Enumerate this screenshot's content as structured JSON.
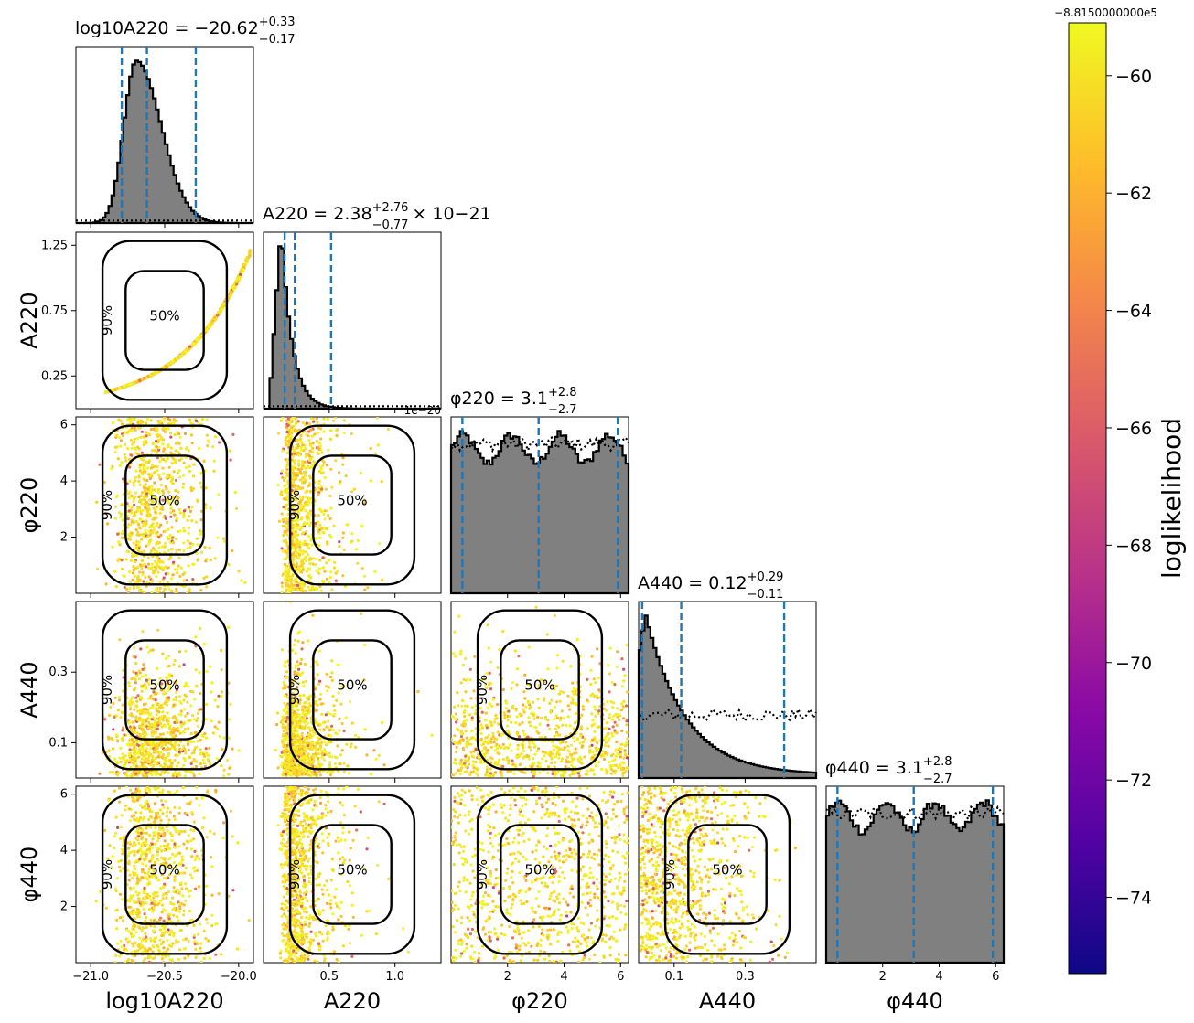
{
  "chart_data": {
    "type": "corner",
    "colormap": "plasma",
    "colorbar": {
      "label": "loglikelihood",
      "offset_text": "−8.8150000000e5",
      "ticks": [
        "−60",
        "−62",
        "−64",
        "−66",
        "−68",
        "−70",
        "−72",
        "−74"
      ],
      "tick_values": [
        -60,
        -62,
        -64,
        -66,
        -68,
        -70,
        -72,
        -74
      ],
      "range": [
        -75.3,
        -59.1
      ],
      "colors": {
        "low": "#0d0887",
        "mid": "#cc4778",
        "high": "#f0f921"
      }
    },
    "parameters": [
      {
        "key": "logA220",
        "xlabel": "log10A220",
        "title_main": "log10A220 = −20.62",
        "title_plus": "+0.33",
        "title_minus": "−0.17",
        "title_suffix": "",
        "range": [
          -21.1,
          -19.9
        ],
        "ticks": [
          -21.0,
          -20.5,
          -20.0
        ],
        "tick_labels": [
          "−21.0",
          "−20.5",
          "−20.0"
        ],
        "quantiles": [
          -20.79,
          -20.62,
          -20.29
        ],
        "offset_label": ""
      },
      {
        "key": "A220",
        "xlabel": "A220",
        "title_main": "A220 = 2.38",
        "title_plus": "+2.76",
        "title_minus": "−0.77",
        "title_suffix": "× 10−21",
        "range": [
          0.0,
          1.35
        ],
        "ticks": [
          0.5,
          1.0
        ],
        "tick_labels": [
          "0.5",
          "1.0"
        ],
        "y_tick_labels": [
          "0.25",
          "0.75",
          "1.25"
        ],
        "y_ticks": [
          0.25,
          0.75,
          1.25
        ],
        "quantiles": [
          0.161,
          0.238,
          0.514
        ],
        "offset_label": "1e−20"
      },
      {
        "key": "phi220",
        "xlabel": "φ220",
        "title_main": "φ220 = 3.1",
        "title_plus": "+2.8",
        "title_minus": "−2.7",
        "title_suffix": "",
        "range": [
          0.0,
          6.283
        ],
        "ticks": [
          2,
          4,
          6
        ],
        "tick_labels": [
          "2",
          "4",
          "6"
        ],
        "quantiles": [
          0.4,
          3.1,
          5.9
        ],
        "offset_label": ""
      },
      {
        "key": "A440",
        "xlabel": "A440",
        "title_main": "A440 = 0.12",
        "title_plus": "+0.29",
        "title_minus": "−0.11",
        "title_suffix": "",
        "range": [
          0.0,
          0.5
        ],
        "ticks": [
          0.1,
          0.3
        ],
        "tick_labels": [
          "0.1",
          "0.3"
        ],
        "quantiles": [
          0.01,
          0.12,
          0.41
        ],
        "offset_label": ""
      },
      {
        "key": "phi440",
        "xlabel": "φ440",
        "title_main": "φ440 = 3.1",
        "title_plus": "+2.8",
        "title_minus": "−2.7",
        "title_suffix": "",
        "range": [
          0.0,
          6.283
        ],
        "ticks": [
          2,
          4,
          6
        ],
        "tick_labels": [
          "2",
          "4",
          "6"
        ],
        "quantiles": [
          0.4,
          3.1,
          5.9
        ],
        "offset_label": ""
      }
    ],
    "contour_labels": [
      "50%",
      "90%"
    ],
    "styles": {
      "hist_fill": "#808080",
      "hist_edge": "#000000",
      "quantile_line": "#1f77b4",
      "prior_line": "#000000"
    }
  }
}
